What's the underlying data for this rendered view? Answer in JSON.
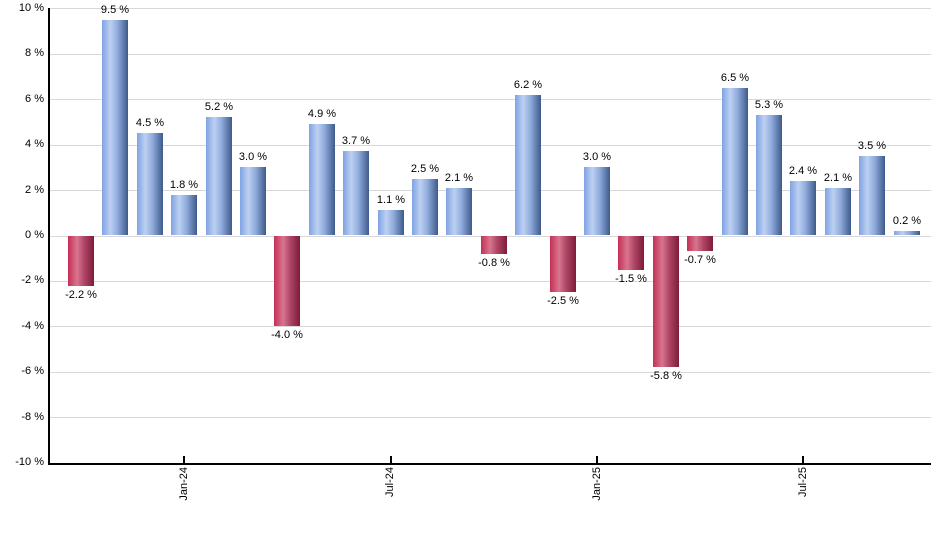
{
  "chart_data": {
    "type": "bar",
    "title": "",
    "xlabel": "",
    "ylabel": "",
    "ylim": [
      -10,
      10
    ],
    "y_tick_step": 2,
    "grid": "horizontal",
    "legend": "none",
    "values": [
      -2.2,
      9.5,
      4.5,
      1.8,
      5.2,
      3.0,
      -4.0,
      4.9,
      3.7,
      1.1,
      2.5,
      2.1,
      -0.8,
      6.2,
      -2.5,
      3.0,
      -1.5,
      -5.8,
      -0.7,
      6.5,
      5.3,
      2.4,
      2.1,
      3.5,
      0.2
    ],
    "data_labels": [
      "-2.2 %",
      "9.5 %",
      "4.5 %",
      "1.8 %",
      "5.2 %",
      "3.0 %",
      "-4.0 %",
      "4.9 %",
      "3.7 %",
      "1.1 %",
      "2.5 %",
      "2.1 %",
      "-0.8 %",
      "6.2 %",
      "-2.5 %",
      "3.0 %",
      "-1.5 %",
      "-5.8 %",
      "-0.7 %",
      "6.5 %",
      "5.3 %",
      "2.4 %",
      "2.1 %",
      "3.5 %",
      "0.2 %"
    ],
    "y_tick_labels": [
      "10 %",
      "8 %",
      "6 %",
      "4 %",
      "2 %",
      "0 %",
      "-2 %",
      "-4 %",
      "-6 %",
      "-8 %",
      "-10 %"
    ],
    "x_ticks": [
      {
        "label": "Jan-24",
        "bar_index": 3
      },
      {
        "label": "Jul-24",
        "bar_index": 9
      },
      {
        "label": "Jan-25",
        "bar_index": 15
      },
      {
        "label": "Jul-25",
        "bar_index": 21
      }
    ],
    "colors": {
      "positive_gradient": [
        "#7fa3e2",
        "#bdd0f2",
        "#8fabdc",
        "#3d5a8b"
      ],
      "negative_gradient": [
        "#c52e57",
        "#d8758d",
        "#b04667",
        "#7d1c39"
      ],
      "gridline": "#d8d8d8",
      "axis": "#000000",
      "label_text": "#000000",
      "background": "#ffffff"
    }
  }
}
